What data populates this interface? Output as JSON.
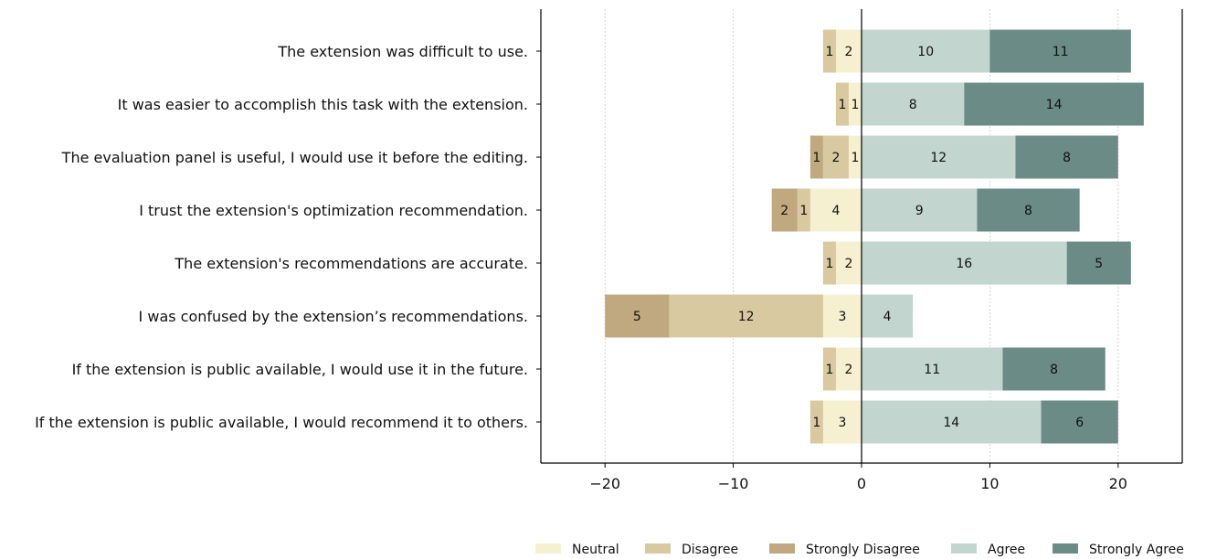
{
  "chart_data": {
    "type": "bar",
    "orientation": "horizontal",
    "stacking": "diverging",
    "categories": [
      "The extension was difficult to use.",
      "It was easier to accomplish this task with the extension.",
      "The evaluation panel is useful, I would use it before the editing.",
      "I trust the extension's optimization recommendation.",
      "The extension's recommendations are accurate.",
      "I was confused by the extension’s recommendations.",
      "If the extension is public available, I would use it in the future.",
      "If the extension is public available, I would recommend it to others."
    ],
    "negative_series": [
      {
        "name": "Neutral",
        "color": "#f5f0d0",
        "values": [
          2,
          1,
          1,
          4,
          2,
          3,
          2,
          3
        ]
      },
      {
        "name": "Disagree",
        "color": "#d9c9a0",
        "values": [
          1,
          1,
          2,
          1,
          1,
          12,
          1,
          1
        ]
      },
      {
        "name": "Strongly Disagree",
        "color": "#c0a97e",
        "values": [
          0,
          0,
          1,
          2,
          0,
          5,
          0,
          0
        ]
      }
    ],
    "positive_series": [
      {
        "name": "Agree",
        "color": "#c3d5cf",
        "values": [
          10,
          8,
          12,
          9,
          16,
          4,
          11,
          14
        ]
      },
      {
        "name": "Strongly Agree",
        "color": "#6a8b86",
        "values": [
          11,
          14,
          8,
          8,
          5,
          0,
          8,
          6
        ]
      }
    ],
    "legend": [
      "Neutral",
      "Disagree",
      "Strongly Disagree",
      "Agree",
      "Strongly Agree"
    ],
    "legend_position": "bottom",
    "xlim": [
      -25,
      25
    ],
    "xticks": [
      -20,
      -10,
      0,
      10,
      20
    ],
    "xtick_labels": [
      "−20",
      "−10",
      "0",
      "10",
      "20"
    ],
    "grid": "vertical dotted",
    "title": "",
    "xlabel": "",
    "ylabel": ""
  }
}
